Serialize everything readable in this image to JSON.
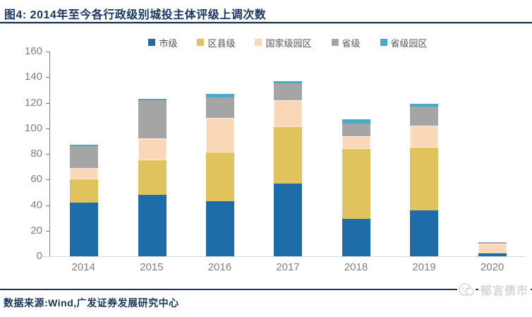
{
  "header": {
    "title": "图4:  2014年至今各行政级别城投主体评级上调次数"
  },
  "chart_data": {
    "type": "bar",
    "stacked": true,
    "title": "2014年至今各行政级别城投主体评级上调次数",
    "categories": [
      "2014",
      "2015",
      "2016",
      "2017",
      "2018",
      "2019",
      "2020"
    ],
    "series": [
      {
        "name": "市级",
        "color": "#1e6ca8",
        "values": [
          42,
          48,
          43,
          57,
          29,
          36,
          2
        ]
      },
      {
        "name": "区县级",
        "color": "#e0c35c",
        "values": [
          18,
          27,
          38,
          44,
          55,
          49,
          1
        ]
      },
      {
        "name": "国家级园区",
        "color": "#fad7b6",
        "values": [
          9,
          17,
          27,
          21,
          10,
          17,
          7
        ]
      },
      {
        "name": "省级",
        "color": "#a5a5a5",
        "values": [
          17,
          30,
          16,
          13,
          10,
          15,
          1
        ]
      },
      {
        "name": "省级园区",
        "color": "#46aac8",
        "values": [
          1,
          1,
          3,
          2,
          3,
          2,
          0
        ]
      }
    ],
    "totals": [
      87,
      123,
      127,
      137,
      107,
      119,
      11
    ],
    "xlabel": "",
    "ylabel": "",
    "ylim": [
      0,
      160
    ],
    "ytick_step": 20,
    "grid": false,
    "legend_position": "top"
  },
  "footer": {
    "source": "数据来源:Wind,广发证券发展研究中心",
    "watermark": "郁言债市"
  },
  "colors": {
    "title_navy": "#16365c",
    "axis_gray": "#7f7f7f",
    "baseline_gray": "#d9d9d9",
    "watermark_gray": "#d4d4d4"
  }
}
